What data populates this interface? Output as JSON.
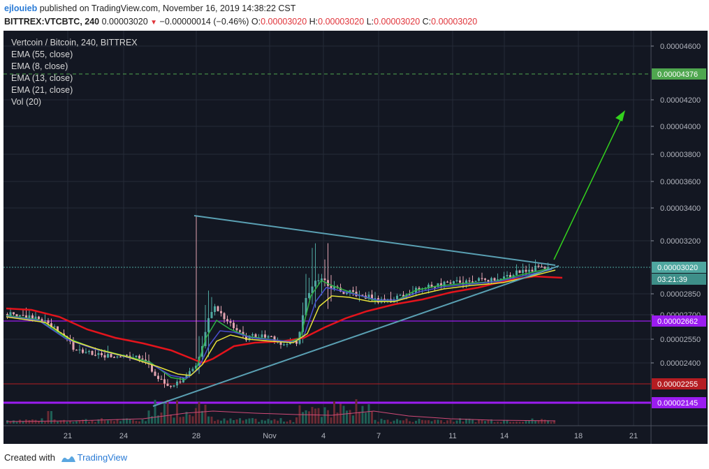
{
  "header": {
    "author": "ejlouieb",
    "published_text": "published on TradingView.com, November 16, 2019 14:38:22 CST",
    "symbol": "BITTREX:VTCBTC, 240",
    "last_price": "0.00003020",
    "change": "−0.00000014 (−0.46%)",
    "open_label": "O:",
    "open": "0.00003020",
    "high_label": "H:",
    "high": "0.00003020",
    "low_label": "L:",
    "low": "0.00003020",
    "close_label": "C:",
    "close": "0.00003020"
  },
  "legend": {
    "title": "Vertcoin / Bitcoin, 240, BITTREX",
    "indicators": [
      "EMA (55, close)",
      "EMA (8, close)",
      "EMA (13, close)",
      "EMA (21, close)",
      "Vol (20)"
    ]
  },
  "footer": {
    "created_with": "Created with",
    "brand": "TradingView"
  },
  "colors": {
    "background": "#131722",
    "ema55": "#e3141c",
    "ema8": "#2fb344",
    "ema13": "#4b4fd0",
    "ema21": "#e8e33a",
    "trendline": "#5aa0b3",
    "arrow": "#33d11d",
    "level_purple": "#9b1cf0",
    "level_red": "#b51d22",
    "price_label": "#4fa7a0",
    "green_label": "#4fa74f"
  },
  "chart_data": {
    "type": "candlestick",
    "x_tick_labels": [
      "21",
      "24",
      "28",
      "Nov",
      "4",
      "7",
      "11",
      "14",
      "18",
      "21"
    ],
    "y_tick_labels": [
      "0.00004600",
      "0.00004200",
      "0.00004000",
      "0.00003800",
      "0.00003600",
      "0.00003400",
      "0.00003200",
      "0.00002850",
      "0.00002700",
      "0.00002550",
      "0.00002400"
    ],
    "price_labels": [
      {
        "text": "0.00004376",
        "color": "#4fa74f",
        "kind": "dashed-level"
      },
      {
        "text": "0.00003020",
        "color": "#4fa7a0",
        "kind": "last-price"
      },
      {
        "text": "03:21:39",
        "color": "#4fa7a0",
        "kind": "countdown"
      },
      {
        "text": "0.00002662",
        "color": "#9b1cf0",
        "kind": "level"
      },
      {
        "text": "0.00002255",
        "color": "#b51d22",
        "kind": "level"
      },
      {
        "text": "0.00002145",
        "color": "#9b1cf0",
        "kind": "level"
      }
    ],
    "patterns": [
      "symmetrical triangle",
      "upward breakout arrow"
    ]
  }
}
